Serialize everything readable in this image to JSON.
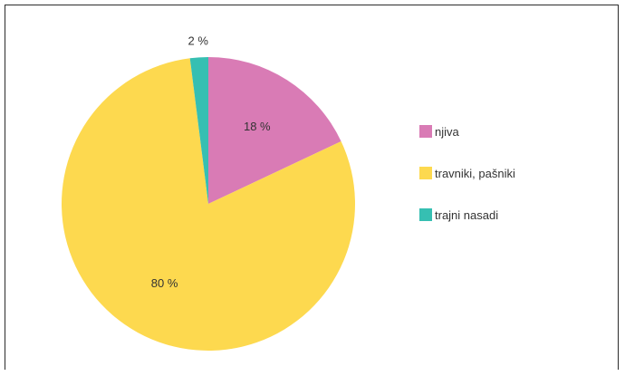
{
  "chart_data": {
    "type": "pie",
    "title": "",
    "categories": [
      "njiva",
      "travniki, pašniki",
      "trajni nasadi"
    ],
    "values": [
      18,
      80,
      2
    ],
    "labels": [
      "18 %",
      "80 %",
      "2 %"
    ],
    "colors": [
      "#d97bb5",
      "#fdd94f",
      "#36bfb2"
    ],
    "start_angle": "12 o'clock",
    "direction": "clockwise",
    "legend_position": "right"
  }
}
